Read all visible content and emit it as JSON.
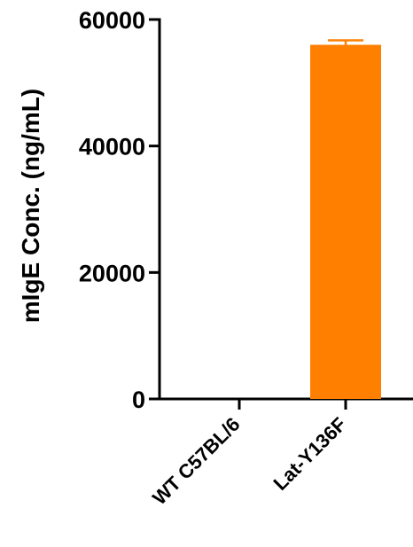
{
  "chart_data": {
    "type": "bar",
    "categories": [
      "WT C57BL/6",
      "Lat-Y136F"
    ],
    "series": [
      {
        "values": [
          0,
          56000
        ],
        "error": [
          0,
          700
        ],
        "color": "#FF8000"
      }
    ],
    "ylabel": "mIgE Conc. (ng/mL)",
    "xlabel": "",
    "ylim": [
      0,
      60000
    ],
    "yticks": [
      0,
      20000,
      40000,
      60000
    ],
    "grid": false,
    "legend": "none"
  }
}
